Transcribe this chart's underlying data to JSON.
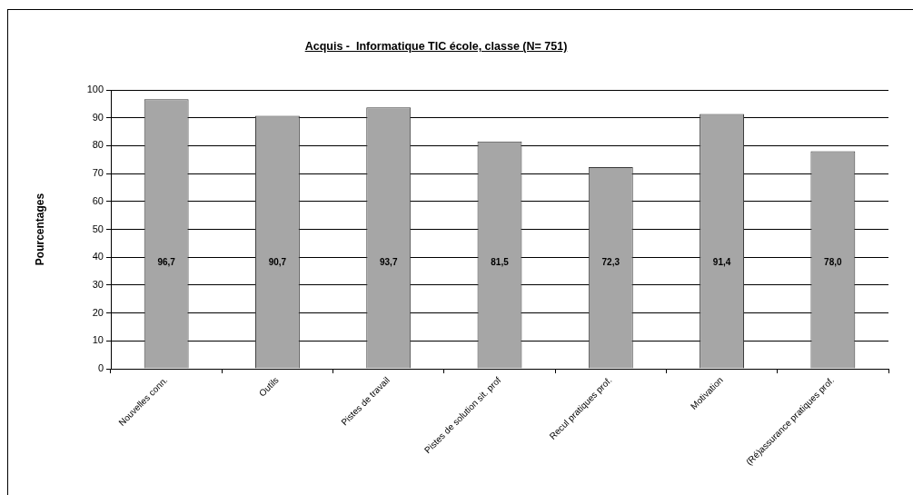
{
  "chart_data": {
    "type": "bar",
    "title": "Acquis -  Informatique TIC école, classe (N= 751)",
    "ylabel": "Pourcentages",
    "categories": [
      "Nouvelles conn.",
      "Outils",
      "Pistes de travail",
      "Pistes de solution sit. prof",
      "Recul pratiques prof.",
      "Motivation",
      "(Ré)assurance pratiques prof."
    ],
    "values": [
      96.7,
      90.7,
      93.7,
      81.5,
      72.3,
      91.4,
      78.0
    ],
    "value_labels": [
      "96,7",
      "90,7",
      "93,7",
      "81,5",
      "72,3",
      "91,4",
      "78,0"
    ],
    "color": "#a6a6a6",
    "ylim": [
      0,
      100
    ],
    "yticks": [
      0,
      10,
      20,
      30,
      40,
      50,
      60,
      70,
      80,
      90,
      100
    ],
    "grid": "y"
  }
}
